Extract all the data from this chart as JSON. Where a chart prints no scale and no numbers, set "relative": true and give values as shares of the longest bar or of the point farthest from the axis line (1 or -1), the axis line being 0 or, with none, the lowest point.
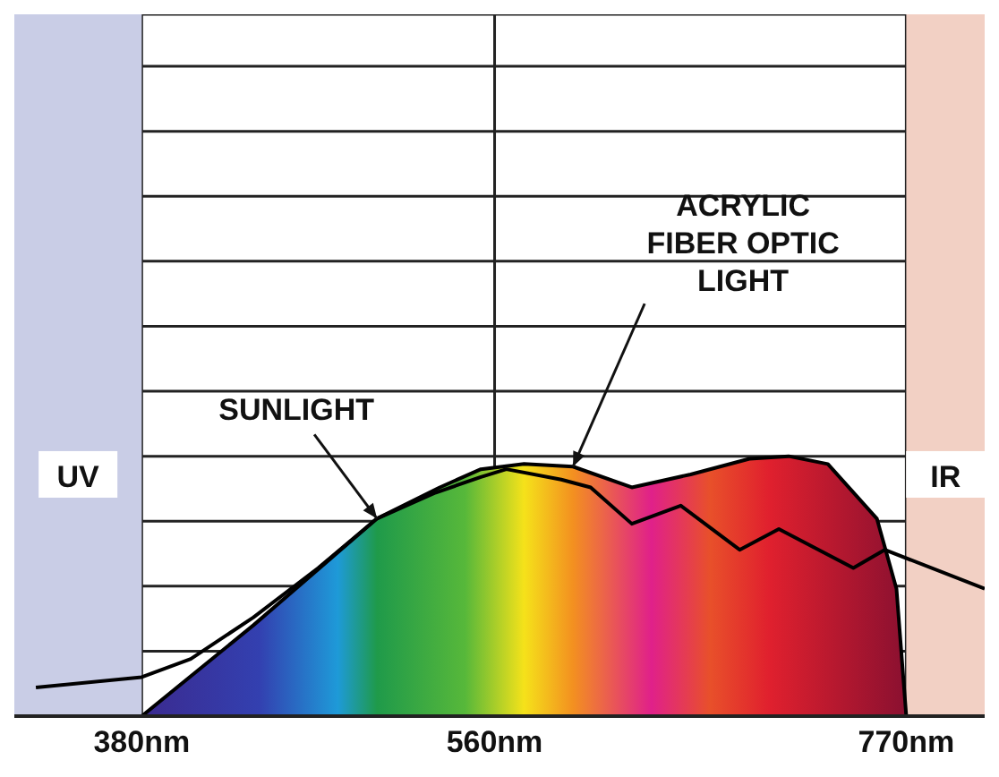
{
  "chart_data": {
    "type": "line",
    "relative": true,
    "xlim": [
      315,
      810
    ],
    "xticks": [
      {
        "value": 380,
        "label": "380nm"
      },
      {
        "value": 560,
        "label": "560nm"
      },
      {
        "value": 770,
        "label": "770nm"
      }
    ],
    "grid": true,
    "marker": "none",
    "bands": [
      {
        "axis": "x",
        "from": 315,
        "to": 380,
        "label": "UV",
        "color": "#c9cde6"
      },
      {
        "axis": "x",
        "from": 770,
        "to": 810,
        "label": "IR",
        "color": "#f2d0c4"
      }
    ],
    "series": [
      {
        "name": "ACRYLIC FIBER OPTIC LIGHT",
        "type": "area",
        "color": "#000000",
        "x": [
          380,
          437,
          500,
          532,
          553,
          575,
          600,
          630,
          660,
          690,
          710,
          730,
          755,
          765,
          770
        ],
        "values": [
          0,
          0.35,
          0.76,
          0.88,
          0.95,
          0.97,
          0.96,
          0.88,
          0.93,
          0.99,
          1,
          0.97,
          0.76,
          0.49,
          0
        ]
      },
      {
        "name": "SUNLIGHT",
        "color": "#000000",
        "x": [
          326,
          380,
          405,
          437,
          470,
          500,
          530,
          553,
          566,
          594,
          609,
          630,
          655,
          685,
          705,
          743,
          759,
          810
        ],
        "values": [
          0.11,
          0.15,
          0.22,
          0.38,
          0.57,
          0.76,
          0.86,
          0.92,
          0.95,
          0.91,
          0.88,
          0.74,
          0.81,
          0.64,
          0.72,
          0.57,
          0.64,
          0.49
        ]
      }
    ]
  }
}
